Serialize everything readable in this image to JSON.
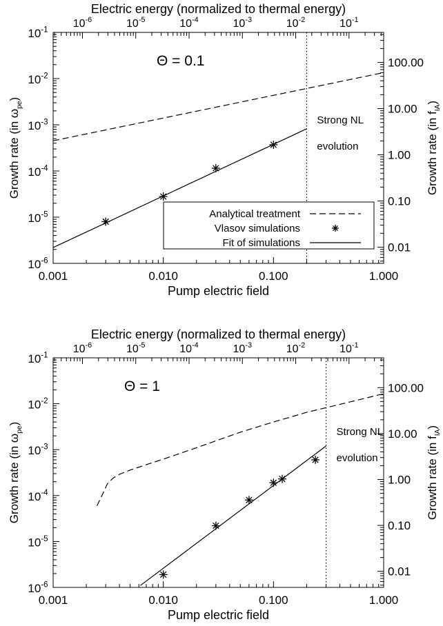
{
  "chart_data": [
    {
      "type": "scatter",
      "top_label": "Electric energy (normalized to thermal energy)",
      "xlabel": "Pump electric field",
      "ylabel": "Growth rate (in ω",
      "ylabel_sub": "pe",
      "y2label": "Growth rate (in f",
      "y2label_sub": "IA",
      "annotation_theta": "Θ = 0.1",
      "annotation_nl_line1": "Strong NL",
      "annotation_nl_line2": "evolution",
      "xscale": "log",
      "yscale": "log",
      "xlim": [
        0.001,
        1.0
      ],
      "ylim": [
        1e-06,
        0.1
      ],
      "x_ticks": [
        "0.001",
        "0.010",
        "0.100",
        "1.000"
      ],
      "y_ticks": [
        {
          "base": "10",
          "exp": "-6"
        },
        {
          "base": "10",
          "exp": "-5"
        },
        {
          "base": "10",
          "exp": "-4"
        },
        {
          "base": "10",
          "exp": "-3"
        },
        {
          "base": "10",
          "exp": "-2"
        },
        {
          "base": "10",
          "exp": "-1"
        }
      ],
      "top_ticks": [
        {
          "base": "10",
          "exp": "-6",
          "value": 1e-06
        },
        {
          "base": "10",
          "exp": "-5",
          "value": 1e-05
        },
        {
          "base": "10",
          "exp": "-4",
          "value": 0.0001
        },
        {
          "base": "10",
          "exp": "-3",
          "value": 0.001
        },
        {
          "base": "10",
          "exp": "-2",
          "value": 0.01
        },
        {
          "base": "10",
          "exp": "-1",
          "value": 0.1
        }
      ],
      "right_ticks": [
        {
          "label": "0.01",
          "value": 0.01
        },
        {
          "label": "0.10",
          "value": 0.1
        },
        {
          "label": "1.00",
          "value": 1.0
        },
        {
          "label": "10.00",
          "value": 10.0
        },
        {
          "label": "100.00",
          "value": 100.0
        }
      ],
      "vline_x": 0.2,
      "series": [
        {
          "name": "Analytical treatment",
          "style": "dashed",
          "x": [
            0.001,
            1.0
          ],
          "y": [
            0.00045,
            0.0135
          ]
        },
        {
          "name": "Vlasov simulations",
          "style": "asterisk",
          "x": [
            0.003,
            0.01,
            0.03,
            0.1
          ],
          "y": [
            8e-06,
            2.8e-05,
            0.000115,
            0.00037
          ]
        },
        {
          "name": "Fit of simulations",
          "style": "solid",
          "x": [
            0.001,
            0.2
          ],
          "y": [
            2.2e-06,
            0.00082
          ]
        }
      ],
      "legend": "bottom-right"
    },
    {
      "type": "scatter",
      "top_label": "Electric energy (normalized to thermal energy)",
      "xlabel": "Pump electric field",
      "ylabel": "Growth rate (in ω",
      "ylabel_sub": "pe",
      "y2label": "Growth rate (in f",
      "y2label_sub": "IA",
      "annotation_theta": "Θ = 1",
      "annotation_nl_line1": "Strong NL",
      "annotation_nl_line2": "evolution",
      "xscale": "log",
      "yscale": "log",
      "xlim": [
        0.001,
        1.0
      ],
      "ylim": [
        1e-06,
        0.1
      ],
      "x_ticks": [
        "0.001",
        "0.010",
        "0.100",
        "1.000"
      ],
      "y_ticks": [
        {
          "base": "10",
          "exp": "-6"
        },
        {
          "base": "10",
          "exp": "-5"
        },
        {
          "base": "10",
          "exp": "-4"
        },
        {
          "base": "10",
          "exp": "-3"
        },
        {
          "base": "10",
          "exp": "-2"
        },
        {
          "base": "10",
          "exp": "-1"
        }
      ],
      "top_ticks": [
        {
          "base": "10",
          "exp": "-6",
          "value": 1e-06
        },
        {
          "base": "10",
          "exp": "-5",
          "value": 1e-05
        },
        {
          "base": "10",
          "exp": "-4",
          "value": 0.0001
        },
        {
          "base": "10",
          "exp": "-3",
          "value": 0.001
        },
        {
          "base": "10",
          "exp": "-2",
          "value": 0.01
        },
        {
          "base": "10",
          "exp": "-1",
          "value": 0.1
        }
      ],
      "right_ticks": [
        {
          "label": "0.01",
          "value": 0.01
        },
        {
          "label": "0.10",
          "value": 0.1
        },
        {
          "label": "1.00",
          "value": 1.0
        },
        {
          "label": "10.00",
          "value": 10.0
        },
        {
          "label": "100.00",
          "value": 100.0
        }
      ],
      "vline_x": 0.3,
      "series": [
        {
          "name": "Analytical treatment",
          "style": "dashed",
          "x": [
            0.0025,
            0.0028,
            0.0031,
            0.0035,
            0.004,
            0.005,
            0.007,
            0.01,
            0.02,
            0.05,
            0.1,
            0.2,
            0.5,
            1.0
          ],
          "y": [
            6e-05,
            0.000105,
            0.00018,
            0.00024,
            0.00029,
            0.00036,
            0.00047,
            0.00062,
            0.0011,
            0.0024,
            0.004,
            0.0065,
            0.011,
            0.0165
          ]
        },
        {
          "name": "Vlasov simulations",
          "style": "asterisk",
          "x": [
            0.01,
            0.03,
            0.06,
            0.1,
            0.12,
            0.24
          ],
          "y": [
            1.9e-06,
            2.2e-05,
            8e-05,
            0.00019,
            0.00023,
            0.0006
          ]
        },
        {
          "name": "Fit of simulations",
          "style": "solid",
          "x": [
            0.0062,
            0.3
          ],
          "y": [
            1.1e-06,
            0.0012
          ]
        }
      ]
    }
  ]
}
